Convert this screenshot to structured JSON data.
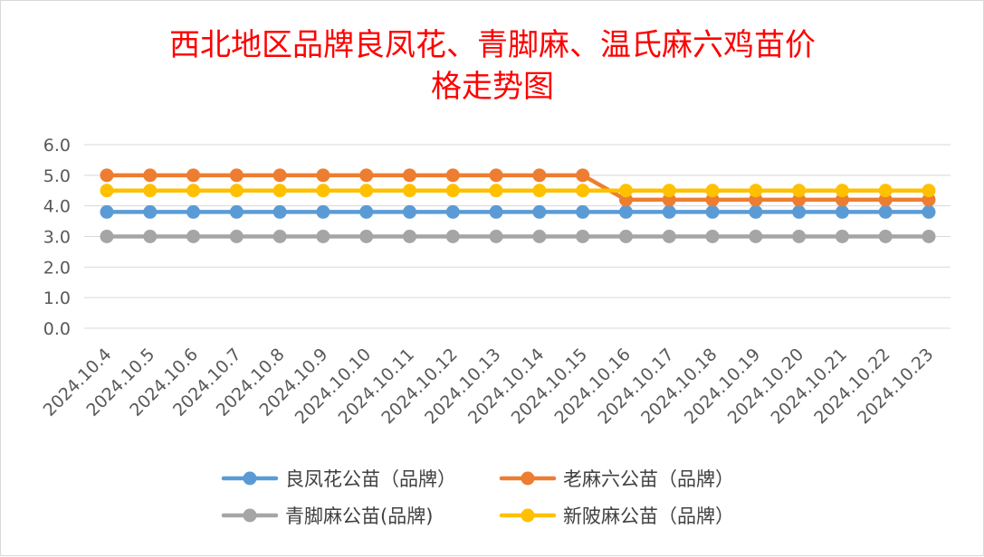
{
  "chart_data": {
    "type": "line",
    "title_lines": [
      "西北地区品牌良凤花、青脚麻、温氏麻六鸡苗价",
      "格走势图"
    ],
    "categories": [
      "2024.10.4",
      "2024.10.5",
      "2024.10.6",
      "2024.10.7",
      "2024.10.8",
      "2024.10.9",
      "2024.10.10",
      "2024.10.11",
      "2024.10.12",
      "2024.10.13",
      "2024.10.14",
      "2024.10.15",
      "2024.10.16",
      "2024.10.17",
      "2024.10.18",
      "2024.10.19",
      "2024.10.20",
      "2024.10.21",
      "2024.10.22",
      "2024.10.23"
    ],
    "ylim": [
      0,
      6
    ],
    "yticks": [
      "0.0",
      "1.0",
      "2.0",
      "3.0",
      "4.0",
      "5.0",
      "6.0"
    ],
    "grid": true,
    "legend_position": "bottom",
    "series": [
      {
        "name": "良凤花公苗（品牌）",
        "color": "#5b9bd5",
        "values": [
          3.8,
          3.8,
          3.8,
          3.8,
          3.8,
          3.8,
          3.8,
          3.8,
          3.8,
          3.8,
          3.8,
          3.8,
          3.8,
          3.8,
          3.8,
          3.8,
          3.8,
          3.8,
          3.8,
          3.8
        ]
      },
      {
        "name": "老麻六公苗（品牌）",
        "color": "#ed7d31",
        "values": [
          5.0,
          5.0,
          5.0,
          5.0,
          5.0,
          5.0,
          5.0,
          5.0,
          5.0,
          5.0,
          5.0,
          5.0,
          4.2,
          4.2,
          4.2,
          4.2,
          4.2,
          4.2,
          4.2,
          4.2
        ]
      },
      {
        "name": "青脚麻公苗(品牌)",
        "color": "#a5a5a5",
        "values": [
          3.0,
          3.0,
          3.0,
          3.0,
          3.0,
          3.0,
          3.0,
          3.0,
          3.0,
          3.0,
          3.0,
          3.0,
          3.0,
          3.0,
          3.0,
          3.0,
          3.0,
          3.0,
          3.0,
          3.0
        ]
      },
      {
        "name": "新陂麻公苗（品牌）",
        "color": "#ffc000",
        "values": [
          4.5,
          4.5,
          4.5,
          4.5,
          4.5,
          4.5,
          4.5,
          4.5,
          4.5,
          4.5,
          4.5,
          4.5,
          4.5,
          4.5,
          4.5,
          4.5,
          4.5,
          4.5,
          4.5,
          4.5
        ]
      }
    ]
  }
}
